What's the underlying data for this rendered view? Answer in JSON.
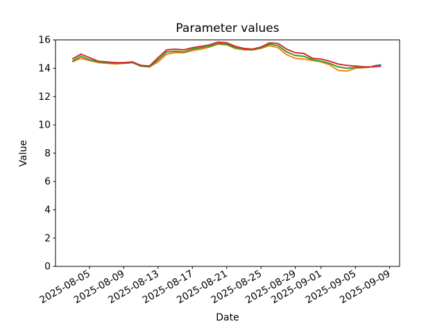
{
  "chart_data": {
    "type": "line",
    "title": "Parameter values",
    "xlabel": "Date",
    "ylabel": "Value",
    "grid": false,
    "legend": null,
    "ylim": [
      0,
      16
    ],
    "yticks": [
      0,
      2,
      4,
      6,
      8,
      10,
      12,
      14,
      16
    ],
    "date_origin": "2025-08-01",
    "xlim_days": [
      0.04,
      40.16
    ],
    "xticks": [
      {
        "day": 4,
        "label": "2025-08-05"
      },
      {
        "day": 8,
        "label": "2025-08-09"
      },
      {
        "day": 12,
        "label": "2025-08-13"
      },
      {
        "day": 16,
        "label": "2025-08-17"
      },
      {
        "day": 20,
        "label": "2025-08-21"
      },
      {
        "day": 24,
        "label": "2025-08-25"
      },
      {
        "day": 28,
        "label": "2025-08-29"
      },
      {
        "day": 31,
        "label": "2025-09-01"
      },
      {
        "day": 35,
        "label": "2025-09-05"
      },
      {
        "day": 39,
        "label": "2025-09-09"
      }
    ],
    "series": [
      {
        "name": "blue",
        "color": "#1f77b4",
        "start_date": "2025-09-07",
        "start_day": 37,
        "cadence": "daily",
        "values": [
          14.15,
          14.25
        ]
      },
      {
        "name": "orange",
        "color": "#ff7f0e",
        "start_date": "2025-08-03",
        "start_day": 2,
        "cadence": "daily",
        "values": [
          14.45,
          14.7,
          14.55,
          14.4,
          14.35,
          14.3,
          14.35,
          14.4,
          14.15,
          14.1,
          14.45,
          15.0,
          15.1,
          15.1,
          15.25,
          15.35,
          15.5,
          15.7,
          15.65,
          15.4,
          15.3,
          15.3,
          15.4,
          15.6,
          15.45,
          14.95,
          14.7,
          14.65,
          14.55,
          14.45,
          14.25,
          13.85,
          13.8,
          14.0,
          14.05,
          14.1,
          14.15
        ]
      },
      {
        "name": "green",
        "color": "#2ca02c",
        "start_date": "2025-08-03",
        "start_day": 2,
        "cadence": "daily",
        "values": [
          14.5,
          14.85,
          14.6,
          14.45,
          14.4,
          14.35,
          14.35,
          14.4,
          14.15,
          14.1,
          14.6,
          15.15,
          15.2,
          15.15,
          15.35,
          15.45,
          15.55,
          15.75,
          15.7,
          15.45,
          15.35,
          15.3,
          15.45,
          15.7,
          15.6,
          15.15,
          14.9,
          14.85,
          14.6,
          14.5,
          14.35,
          14.1,
          14.0,
          14.05,
          14.05,
          14.1,
          14.15
        ]
      },
      {
        "name": "red",
        "color": "#d62728",
        "start_date": "2025-08-03",
        "start_day": 2,
        "cadence": "daily",
        "values": [
          14.65,
          15.0,
          14.75,
          14.5,
          14.45,
          14.4,
          14.4,
          14.45,
          14.2,
          14.15,
          14.75,
          15.3,
          15.35,
          15.3,
          15.45,
          15.55,
          15.65,
          15.85,
          15.8,
          15.55,
          15.4,
          15.35,
          15.5,
          15.8,
          15.75,
          15.35,
          15.1,
          15.05,
          14.7,
          14.65,
          14.5,
          14.3,
          14.2,
          14.15,
          14.1,
          14.1,
          14.15
        ]
      }
    ]
  }
}
